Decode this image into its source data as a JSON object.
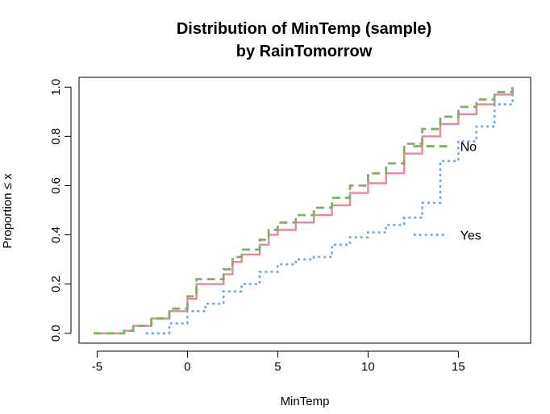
{
  "chart_data": {
    "type": "line",
    "title": "Distribution of MinTemp (sample)",
    "subtitle": "by RainTomorrow",
    "xlabel": "MinTemp",
    "ylabel": "Proportion ≤ x",
    "xlim": [
      -6,
      19
    ],
    "ylim": [
      -0.04,
      1.04
    ],
    "x_ticks": [
      -5,
      0,
      5,
      10,
      15
    ],
    "y_ticks": [
      0.0,
      0.2,
      0.4,
      0.6,
      0.8,
      1.0
    ],
    "x_tick_labels": [
      "-5",
      "0",
      "5",
      "10",
      "15"
    ],
    "y_tick_labels": [
      "0.0",
      "0.2",
      "0.4",
      "0.6",
      "0.8",
      "1.0"
    ],
    "grid": false,
    "legend": "inline labels",
    "series": [
      {
        "name": "",
        "color": "#e8889c",
        "style": "solid",
        "x": [
          -5.2,
          -3.5,
          -3,
          -2,
          -1,
          0,
          0.5,
          2,
          2.5,
          3,
          4,
          4.5,
          5,
          6,
          7,
          8,
          9,
          10,
          11,
          12,
          13,
          14,
          15,
          16,
          17,
          18
        ],
        "y": [
          0.0,
          0.01,
          0.03,
          0.06,
          0.09,
          0.14,
          0.2,
          0.24,
          0.29,
          0.32,
          0.36,
          0.4,
          0.42,
          0.45,
          0.48,
          0.52,
          0.57,
          0.61,
          0.65,
          0.73,
          0.8,
          0.85,
          0.89,
          0.93,
          0.97,
          1.0
        ]
      },
      {
        "name": "No",
        "color": "#7fb069",
        "style": "dashed",
        "x": [
          -5.2,
          -3.5,
          -3,
          -2,
          -1,
          0,
          0.5,
          2,
          2.5,
          3,
          4,
          4.5,
          5,
          6,
          7,
          8,
          9,
          10,
          11,
          12,
          13,
          14,
          15,
          16,
          17,
          18
        ],
        "y": [
          0.0,
          0.01,
          0.03,
          0.06,
          0.1,
          0.15,
          0.22,
          0.26,
          0.31,
          0.34,
          0.38,
          0.42,
          0.45,
          0.48,
          0.51,
          0.55,
          0.6,
          0.65,
          0.69,
          0.77,
          0.83,
          0.88,
          0.92,
          0.95,
          0.98,
          1.0
        ]
      },
      {
        "name": "Yes",
        "color": "#6fa8dc",
        "style": "dotted",
        "x": [
          -2.3,
          -1,
          0,
          1,
          2,
          3,
          4,
          5,
          6,
          7,
          8,
          9,
          10,
          11,
          12,
          13,
          14,
          15,
          16,
          17,
          18
        ],
        "y": [
          0.0,
          0.04,
          0.09,
          0.12,
          0.17,
          0.2,
          0.25,
          0.28,
          0.3,
          0.31,
          0.36,
          0.39,
          0.41,
          0.44,
          0.47,
          0.53,
          0.7,
          0.78,
          0.84,
          0.93,
          1.0
        ]
      }
    ]
  }
}
